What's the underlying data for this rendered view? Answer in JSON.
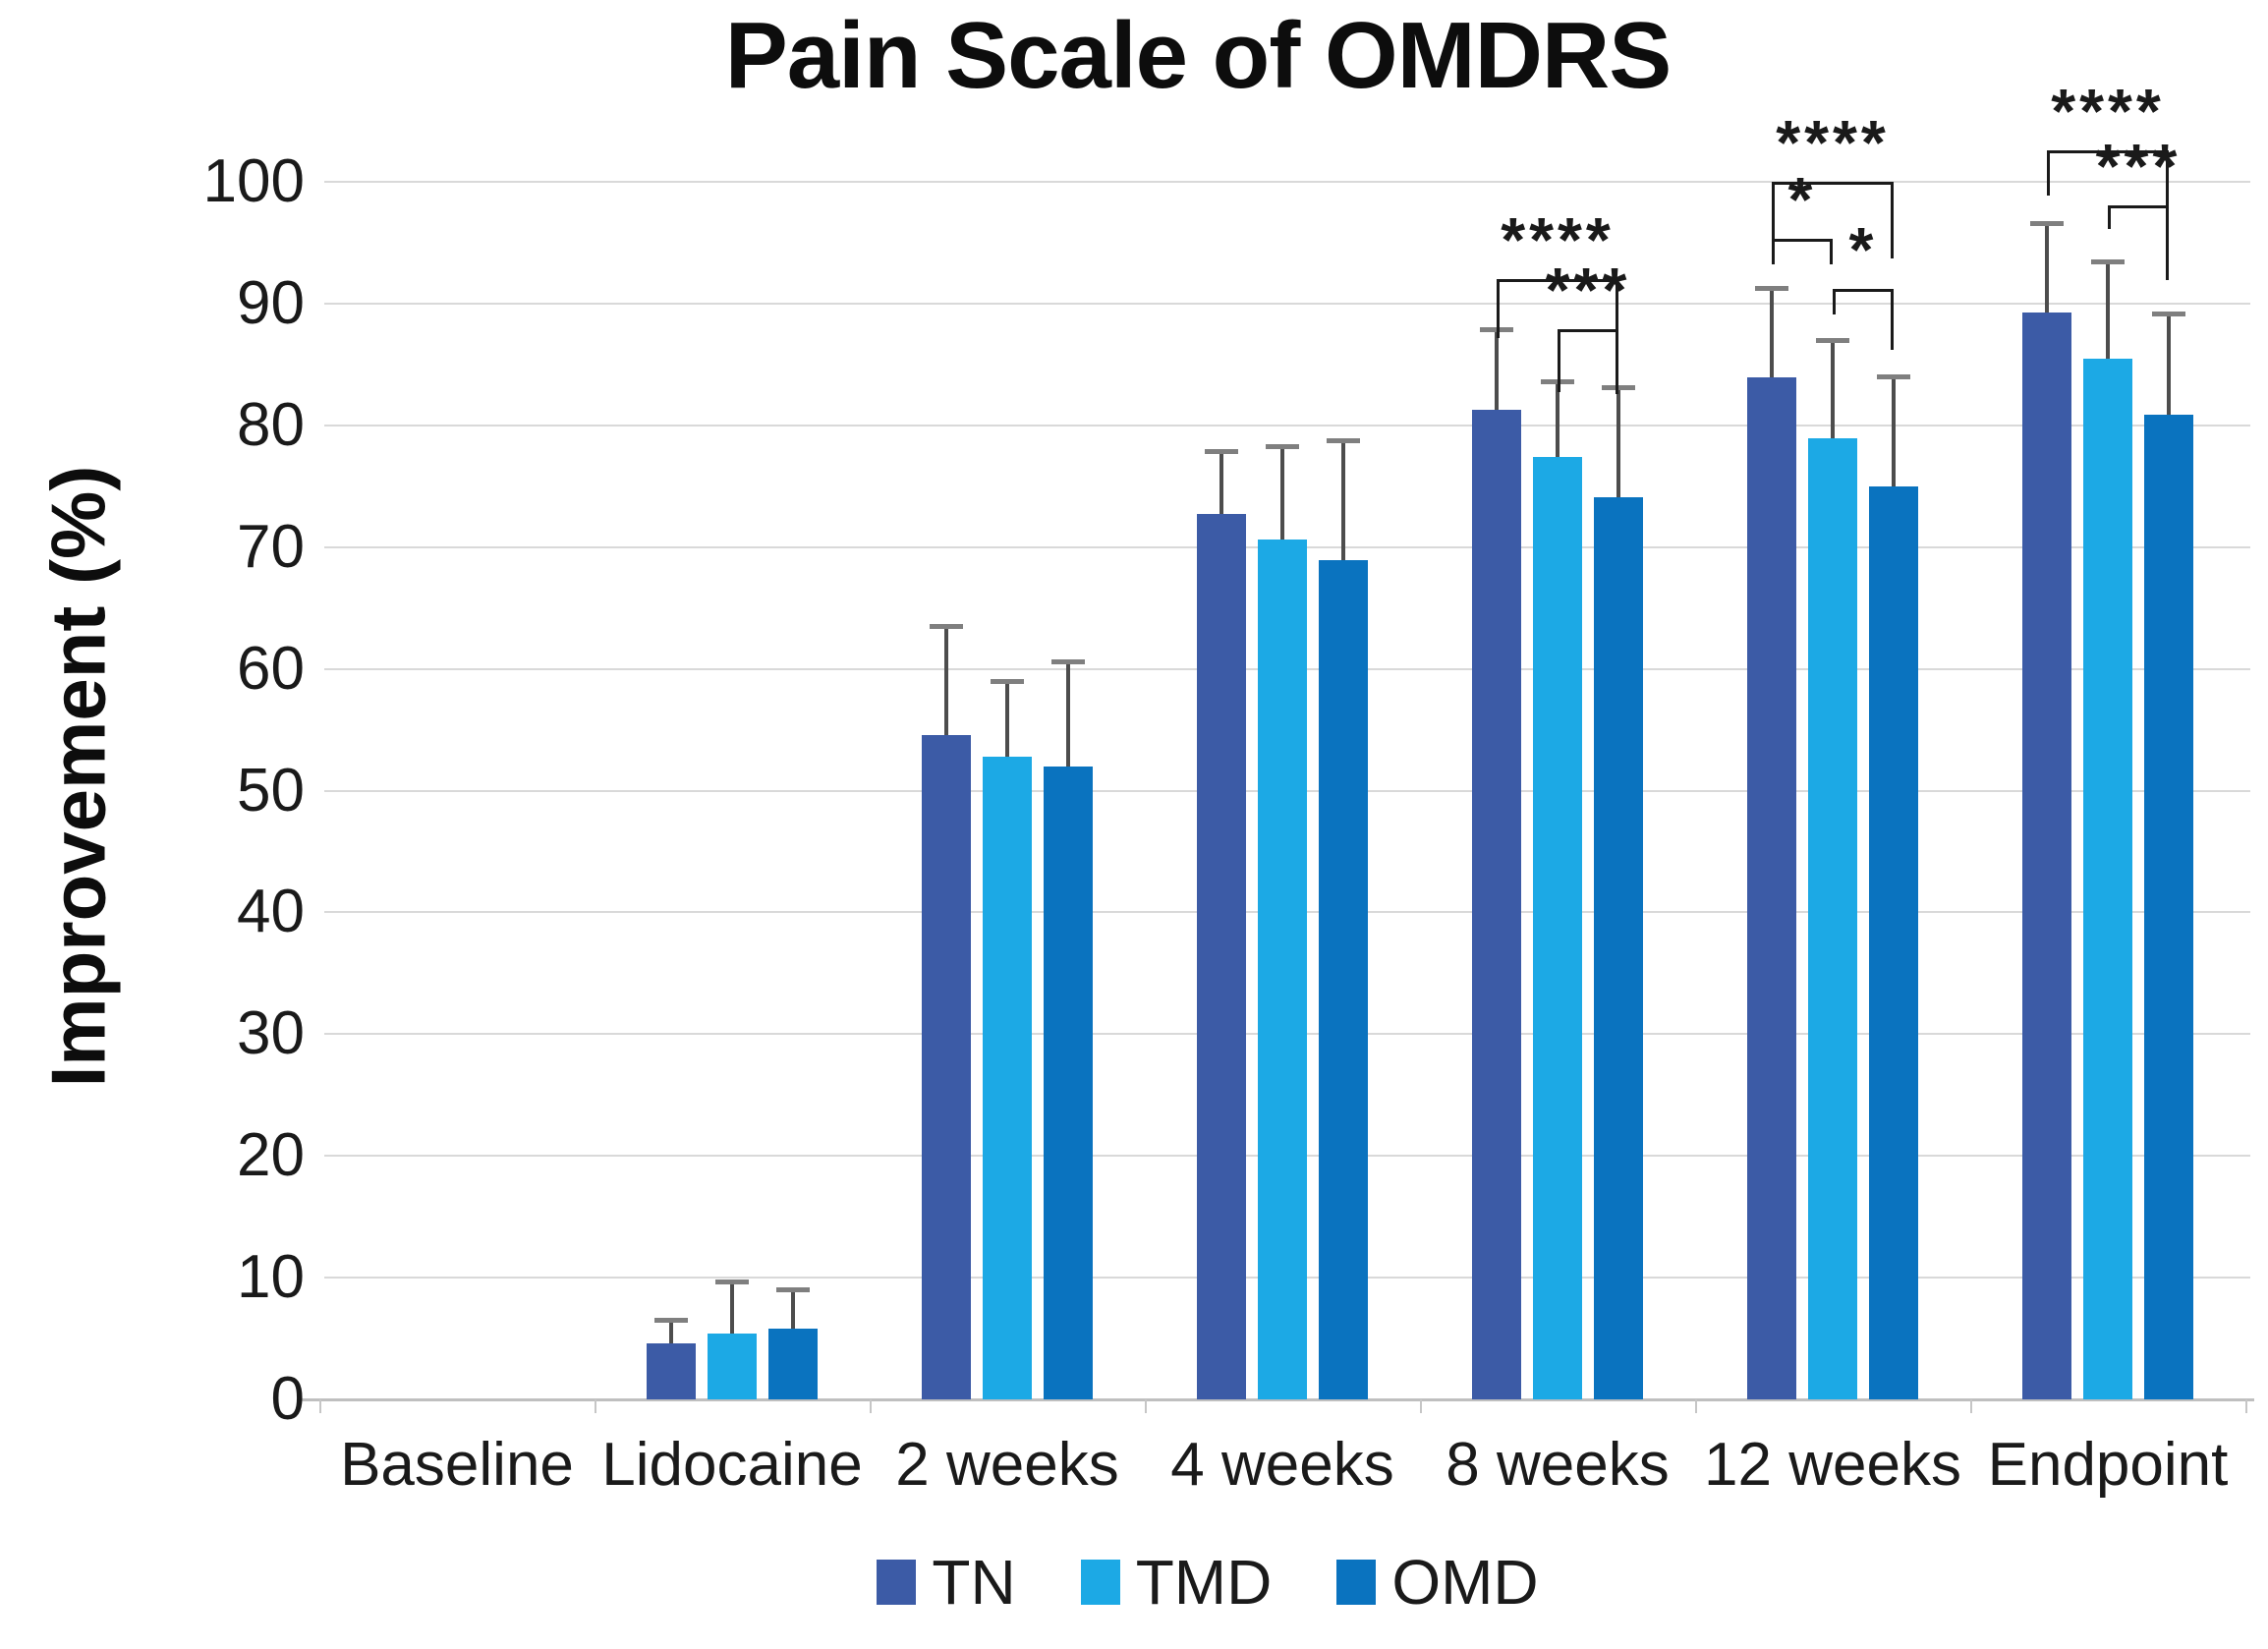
{
  "title": "Pain Scale of OMDRS",
  "y_axis_title": "Improvement (%)",
  "legend": {
    "items": [
      {
        "label": "TN",
        "color": "#3C5BA6"
      },
      {
        "label": "TMD",
        "color": "#1CA9E5"
      },
      {
        "label": "OMD",
        "color": "#0A73BF"
      }
    ]
  },
  "chart_data": {
    "type": "bar",
    "title": "Pain Scale of OMDRS",
    "xlabel": "",
    "ylabel": "Improvement (%)",
    "ylim": [
      0,
      100
    ],
    "yticks": [
      0,
      10,
      20,
      30,
      40,
      50,
      60,
      70,
      80,
      90,
      100
    ],
    "grid": "horizontal-only",
    "legend_position": "bottom-center",
    "categories": [
      "Baseline",
      "Lidocaine",
      "2 weeks",
      "4 weeks",
      "8 weeks",
      "12 weeks",
      "Endpoint"
    ],
    "series": [
      {
        "name": "TN",
        "color": "#3C5BA6",
        "values": [
          0,
          4.6,
          54.6,
          72.7,
          81.3,
          83.9,
          89.3
        ],
        "error_top": [
          null,
          6.5,
          63.5,
          77.9,
          87.9,
          91.3,
          96.6
        ]
      },
      {
        "name": "TMD",
        "color": "#1CA9E5",
        "values": [
          0,
          5.4,
          52.8,
          70.6,
          77.4,
          78.9,
          85.5
        ],
        "error_top": [
          null,
          9.7,
          59.0,
          78.3,
          83.6,
          87.0,
          93.5
        ]
      },
      {
        "name": "OMD",
        "color": "#0A73BF",
        "values": [
          0,
          5.8,
          52.0,
          68.9,
          74.1,
          75.0,
          80.9
        ],
        "error_top": [
          null,
          9.0,
          60.6,
          78.8,
          83.1,
          84.0,
          89.2
        ]
      }
    ],
    "significance": [
      {
        "category": "8 weeks",
        "from": "TN",
        "to": "OMD",
        "label": "****",
        "y": 92.0,
        "left_drop": 60,
        "right_drop": 117
      },
      {
        "category": "8 weeks",
        "from": "TMD",
        "to": "OMD",
        "label": "***",
        "y": 87.9,
        "left_drop": 64,
        "right_drop": 62
      },
      {
        "category": "12 weeks",
        "from": "TN",
        "to": "OMD",
        "label": "****",
        "y": 100.0,
        "left_drop": 75,
        "right_drop": 78
      },
      {
        "category": "12 weeks",
        "from": "TN",
        "to": "TMD",
        "label": "*",
        "y": 95.3,
        "left_drop": 26,
        "right_drop": 26
      },
      {
        "category": "12 weeks",
        "from": "TMD",
        "to": "OMD",
        "label": "*",
        "y": 91.2,
        "left_drop": 26,
        "right_drop": 62
      },
      {
        "category": "Endpoint",
        "from": "TN",
        "to": "OMD",
        "label": "****",
        "y": 102.6,
        "left_drop": 46,
        "right_drop": 132
      },
      {
        "category": "Endpoint",
        "from": "TMD",
        "to": "OMD",
        "label": "***",
        "y": 98.1,
        "left_drop": 24,
        "right_drop": 76
      }
    ]
  },
  "style": {
    "grid_color": "#d9d9d9",
    "axis_color": "#bfbfbf",
    "error_bar_color": "#4d4d4d",
    "error_cap_color": "#7f7f7f",
    "text_color": "#1a1a1a"
  }
}
